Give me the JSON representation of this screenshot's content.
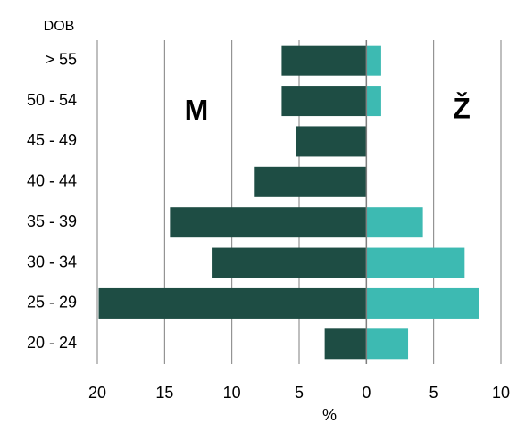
{
  "chart_data": {
    "type": "pyramid",
    "y_label": "DOB",
    "x_label": "%",
    "categories": [
      "> 55",
      "50 - 54",
      "45 - 49",
      "40 - 44",
      "35 - 39",
      "30 - 34",
      "25 - 29",
      "20 - 24"
    ],
    "series": [
      {
        "name": "M",
        "color": "#1e4d44",
        "direction": "left",
        "values": [
          6.3,
          6.3,
          5.2,
          8.3,
          14.6,
          11.5,
          19.9,
          3.1
        ]
      },
      {
        "name": "Ž",
        "color": "#3dbab2",
        "direction": "right",
        "values": [
          1.1,
          1.1,
          0,
          0,
          4.2,
          7.3,
          8.4,
          3.1
        ]
      }
    ],
    "xlim": [
      -20,
      10
    ],
    "xticks": [
      {
        "value": -20,
        "label": "20"
      },
      {
        "value": -15,
        "label": "15"
      },
      {
        "value": -10,
        "label": "10"
      },
      {
        "value": -5,
        "label": "5"
      },
      0,
      5,
      10
    ],
    "grid": true
  }
}
